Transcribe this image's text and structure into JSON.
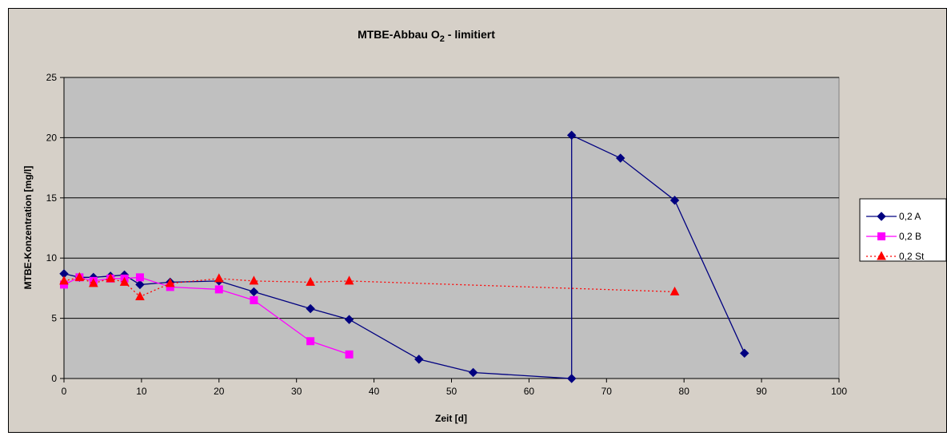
{
  "chart_data": {
    "type": "line",
    "title_main": "MTBE-Abbau O",
    "title_sub": "2",
    "title_rest": " - limitiert",
    "xlabel": "Zeit [d]",
    "ylabel": "MTBE-Konzentration [mg/l]",
    "xlim": [
      0,
      100
    ],
    "ylim": [
      0,
      25
    ],
    "xticks": [
      0,
      10,
      20,
      30,
      40,
      50,
      60,
      70,
      80,
      90,
      100
    ],
    "yticks": [
      0,
      5,
      10,
      15,
      20,
      25
    ],
    "grid": "horizontal",
    "legend_position": "right",
    "series": [
      {
        "name": "0,2 A",
        "color": "#000080",
        "marker": "diamond",
        "line": "solid",
        "points": [
          [
            0,
            8.7
          ],
          [
            2,
            8.4
          ],
          [
            3.8,
            8.4
          ],
          [
            6,
            8.5
          ],
          [
            7.8,
            8.6
          ],
          [
            9.8,
            7.8
          ],
          [
            13.7,
            8.0
          ],
          [
            20,
            8.1
          ],
          [
            24.5,
            7.2
          ],
          [
            31.8,
            5.8
          ],
          [
            36.8,
            4.9
          ],
          [
            45.8,
            1.6
          ],
          [
            52.8,
            0.5
          ],
          [
            65.5,
            0.0
          ],
          [
            65.5,
            20.2
          ],
          [
            71.8,
            18.3
          ],
          [
            78.8,
            14.8
          ],
          [
            87.8,
            2.1
          ]
        ]
      },
      {
        "name": "0,2 B",
        "color": "#ff00ff",
        "marker": "square",
        "line": "solid",
        "points": [
          [
            0,
            7.8
          ],
          [
            2,
            8.4
          ],
          [
            3.8,
            8.1
          ],
          [
            6,
            8.3
          ],
          [
            7.8,
            8.3
          ],
          [
            9.8,
            8.4
          ],
          [
            13.7,
            7.6
          ],
          [
            20,
            7.4
          ],
          [
            24.5,
            6.5
          ],
          [
            31.8,
            3.1
          ],
          [
            36.8,
            2.0
          ]
        ]
      },
      {
        "name": "0,2 St",
        "color": "#ff0000",
        "marker": "triangle",
        "line": "dotted",
        "points": [
          [
            0,
            8.1
          ],
          [
            2,
            8.4
          ],
          [
            3.8,
            7.9
          ],
          [
            6,
            8.3
          ],
          [
            7.8,
            8.0
          ],
          [
            9.8,
            6.8
          ],
          [
            13.7,
            7.9
          ],
          [
            20,
            8.3
          ],
          [
            24.5,
            8.1
          ],
          [
            31.8,
            8.0
          ],
          [
            36.8,
            8.1
          ],
          [
            78.8,
            7.2
          ]
        ]
      }
    ]
  }
}
